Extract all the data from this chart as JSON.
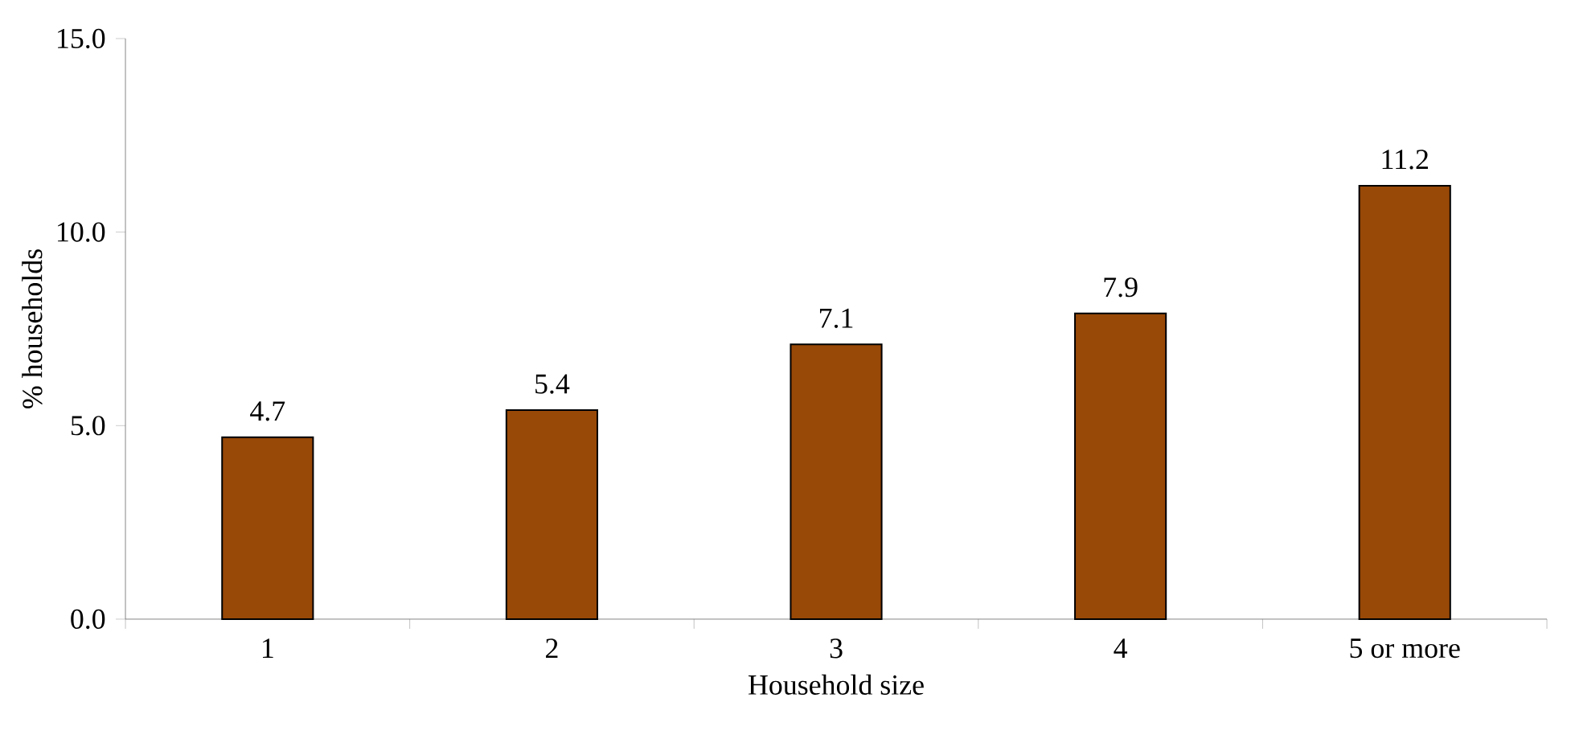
{
  "chart_data": {
    "type": "bar",
    "xlabel": "Household size",
    "ylabel": "% households",
    "categories": [
      "1",
      "2",
      "3",
      "4",
      "5 or more"
    ],
    "values": [
      4.7,
      5.4,
      7.1,
      7.9,
      11.2
    ],
    "color": "#984807",
    "ylim": [
      0,
      15
    ],
    "yticks": [
      {
        "value": 0,
        "label": "0.0"
      },
      {
        "value": 5,
        "label": "5.0"
      },
      {
        "value": 10,
        "label": "10.0"
      },
      {
        "value": 15,
        "label": "15.0"
      }
    ],
    "data_labels": true
  }
}
